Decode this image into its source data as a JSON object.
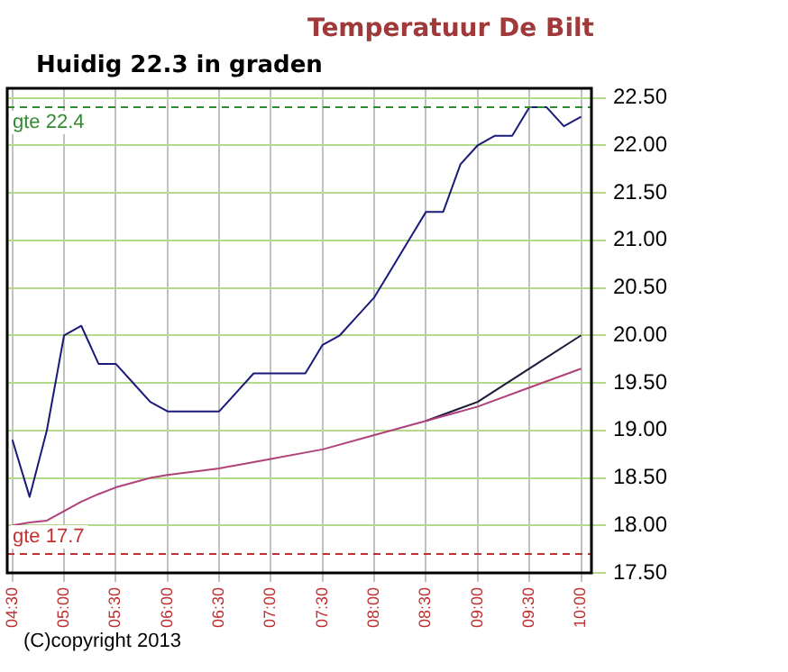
{
  "chart_data": {
    "type": "line",
    "title": "Temperatuur De Bilt",
    "subtitle": "Huidig 22.3 in graden",
    "annotations": [
      "(C)copyright 2013"
    ],
    "xlim": [
      4.45,
      10.1
    ],
    "xticks": [
      {
        "value": 4.5,
        "label": "04:30"
      },
      {
        "value": 5,
        "label": "05:00"
      },
      {
        "value": 5.5,
        "label": "05:30"
      },
      {
        "value": 6,
        "label": "06:00"
      },
      {
        "value": 6.5,
        "label": "06:30"
      },
      {
        "value": 7,
        "label": "07:00"
      },
      {
        "value": 7.5,
        "label": "07:30"
      },
      {
        "value": 8,
        "label": "08:00"
      },
      {
        "value": 8.5,
        "label": "08:30"
      },
      {
        "value": 9,
        "label": "09:00"
      },
      {
        "value": 9.5,
        "label": "09:30"
      },
      {
        "value": 10,
        "label": "10:00"
      }
    ],
    "ylim": [
      17.5,
      22.6
    ],
    "yticks": [
      {
        "value": 17.5,
        "label": "17.50"
      },
      {
        "value": 18,
        "label": "18.00"
      },
      {
        "value": 18.5,
        "label": "18.50"
      },
      {
        "value": 19,
        "label": "19.00"
      },
      {
        "value": 19.5,
        "label": "19.50"
      },
      {
        "value": 20,
        "label": "20.00"
      },
      {
        "value": 20.5,
        "label": "20.50"
      },
      {
        "value": 21,
        "label": "21.00"
      },
      {
        "value": 21.5,
        "label": "21.50"
      },
      {
        "value": 22,
        "label": "22.00"
      },
      {
        "value": 22.5,
        "label": "22.50"
      }
    ],
    "grid": true,
    "legend": false,
    "marker": "none",
    "line_style": "solid",
    "ref_lines": [
      {
        "axis": "y",
        "value": 22.4,
        "label": "gte 22.4",
        "color": "#2e8b2e",
        "line_style": "dashed"
      },
      {
        "axis": "y",
        "value": 17.7,
        "label": "gte 17.7",
        "color": "#c03030",
        "line_style": "dashed"
      }
    ],
    "series": [
      {
        "color": "#1a1a7a",
        "x": [
          4.5,
          4.6667,
          4.8333,
          5,
          5.1667,
          5.3333,
          5.5,
          5.6667,
          5.8333,
          6,
          6.1667,
          6.3333,
          6.5,
          6.6667,
          6.8333,
          7,
          7.1667,
          7.3333,
          7.5,
          7.6667,
          7.8333,
          8,
          8.1667,
          8.3333,
          8.5,
          8.6667,
          8.8333,
          9,
          9.1667,
          9.3333,
          9.5,
          9.6667,
          9.8333,
          10
        ],
        "values": [
          18.9,
          18.3,
          19.0,
          20.0,
          20.1,
          19.7,
          19.7,
          19.5,
          19.3,
          19.2,
          19.2,
          19.2,
          19.2,
          19.4,
          19.6,
          19.6,
          19.6,
          19.6,
          19.9,
          20.0,
          20.2,
          20.4,
          20.7,
          21.0,
          21.3,
          21.3,
          21.8,
          22.0,
          22.1,
          22.1,
          22.4,
          22.4,
          22.2,
          22.3
        ]
      },
      {
        "color": "#b0407a",
        "x": [
          4.5,
          4.6667,
          4.8333,
          5,
          5.1667,
          5.3333,
          5.5,
          5.6667,
          5.8333,
          6,
          6.5,
          7,
          7.5,
          8,
          8.5,
          9,
          9.5,
          10
        ],
        "values": [
          18.0,
          18.03,
          18.05,
          18.15,
          18.25,
          18.33,
          18.4,
          18.45,
          18.5,
          18.53,
          18.6,
          18.7,
          18.8,
          18.95,
          19.1,
          19.25,
          19.45,
          19.65
        ]
      },
      {
        "color": "#1a1a3a",
        "x": [
          8.5,
          9,
          9.5,
          10
        ],
        "values": [
          19.1,
          19.3,
          19.65,
          20.0
        ]
      }
    ]
  }
}
